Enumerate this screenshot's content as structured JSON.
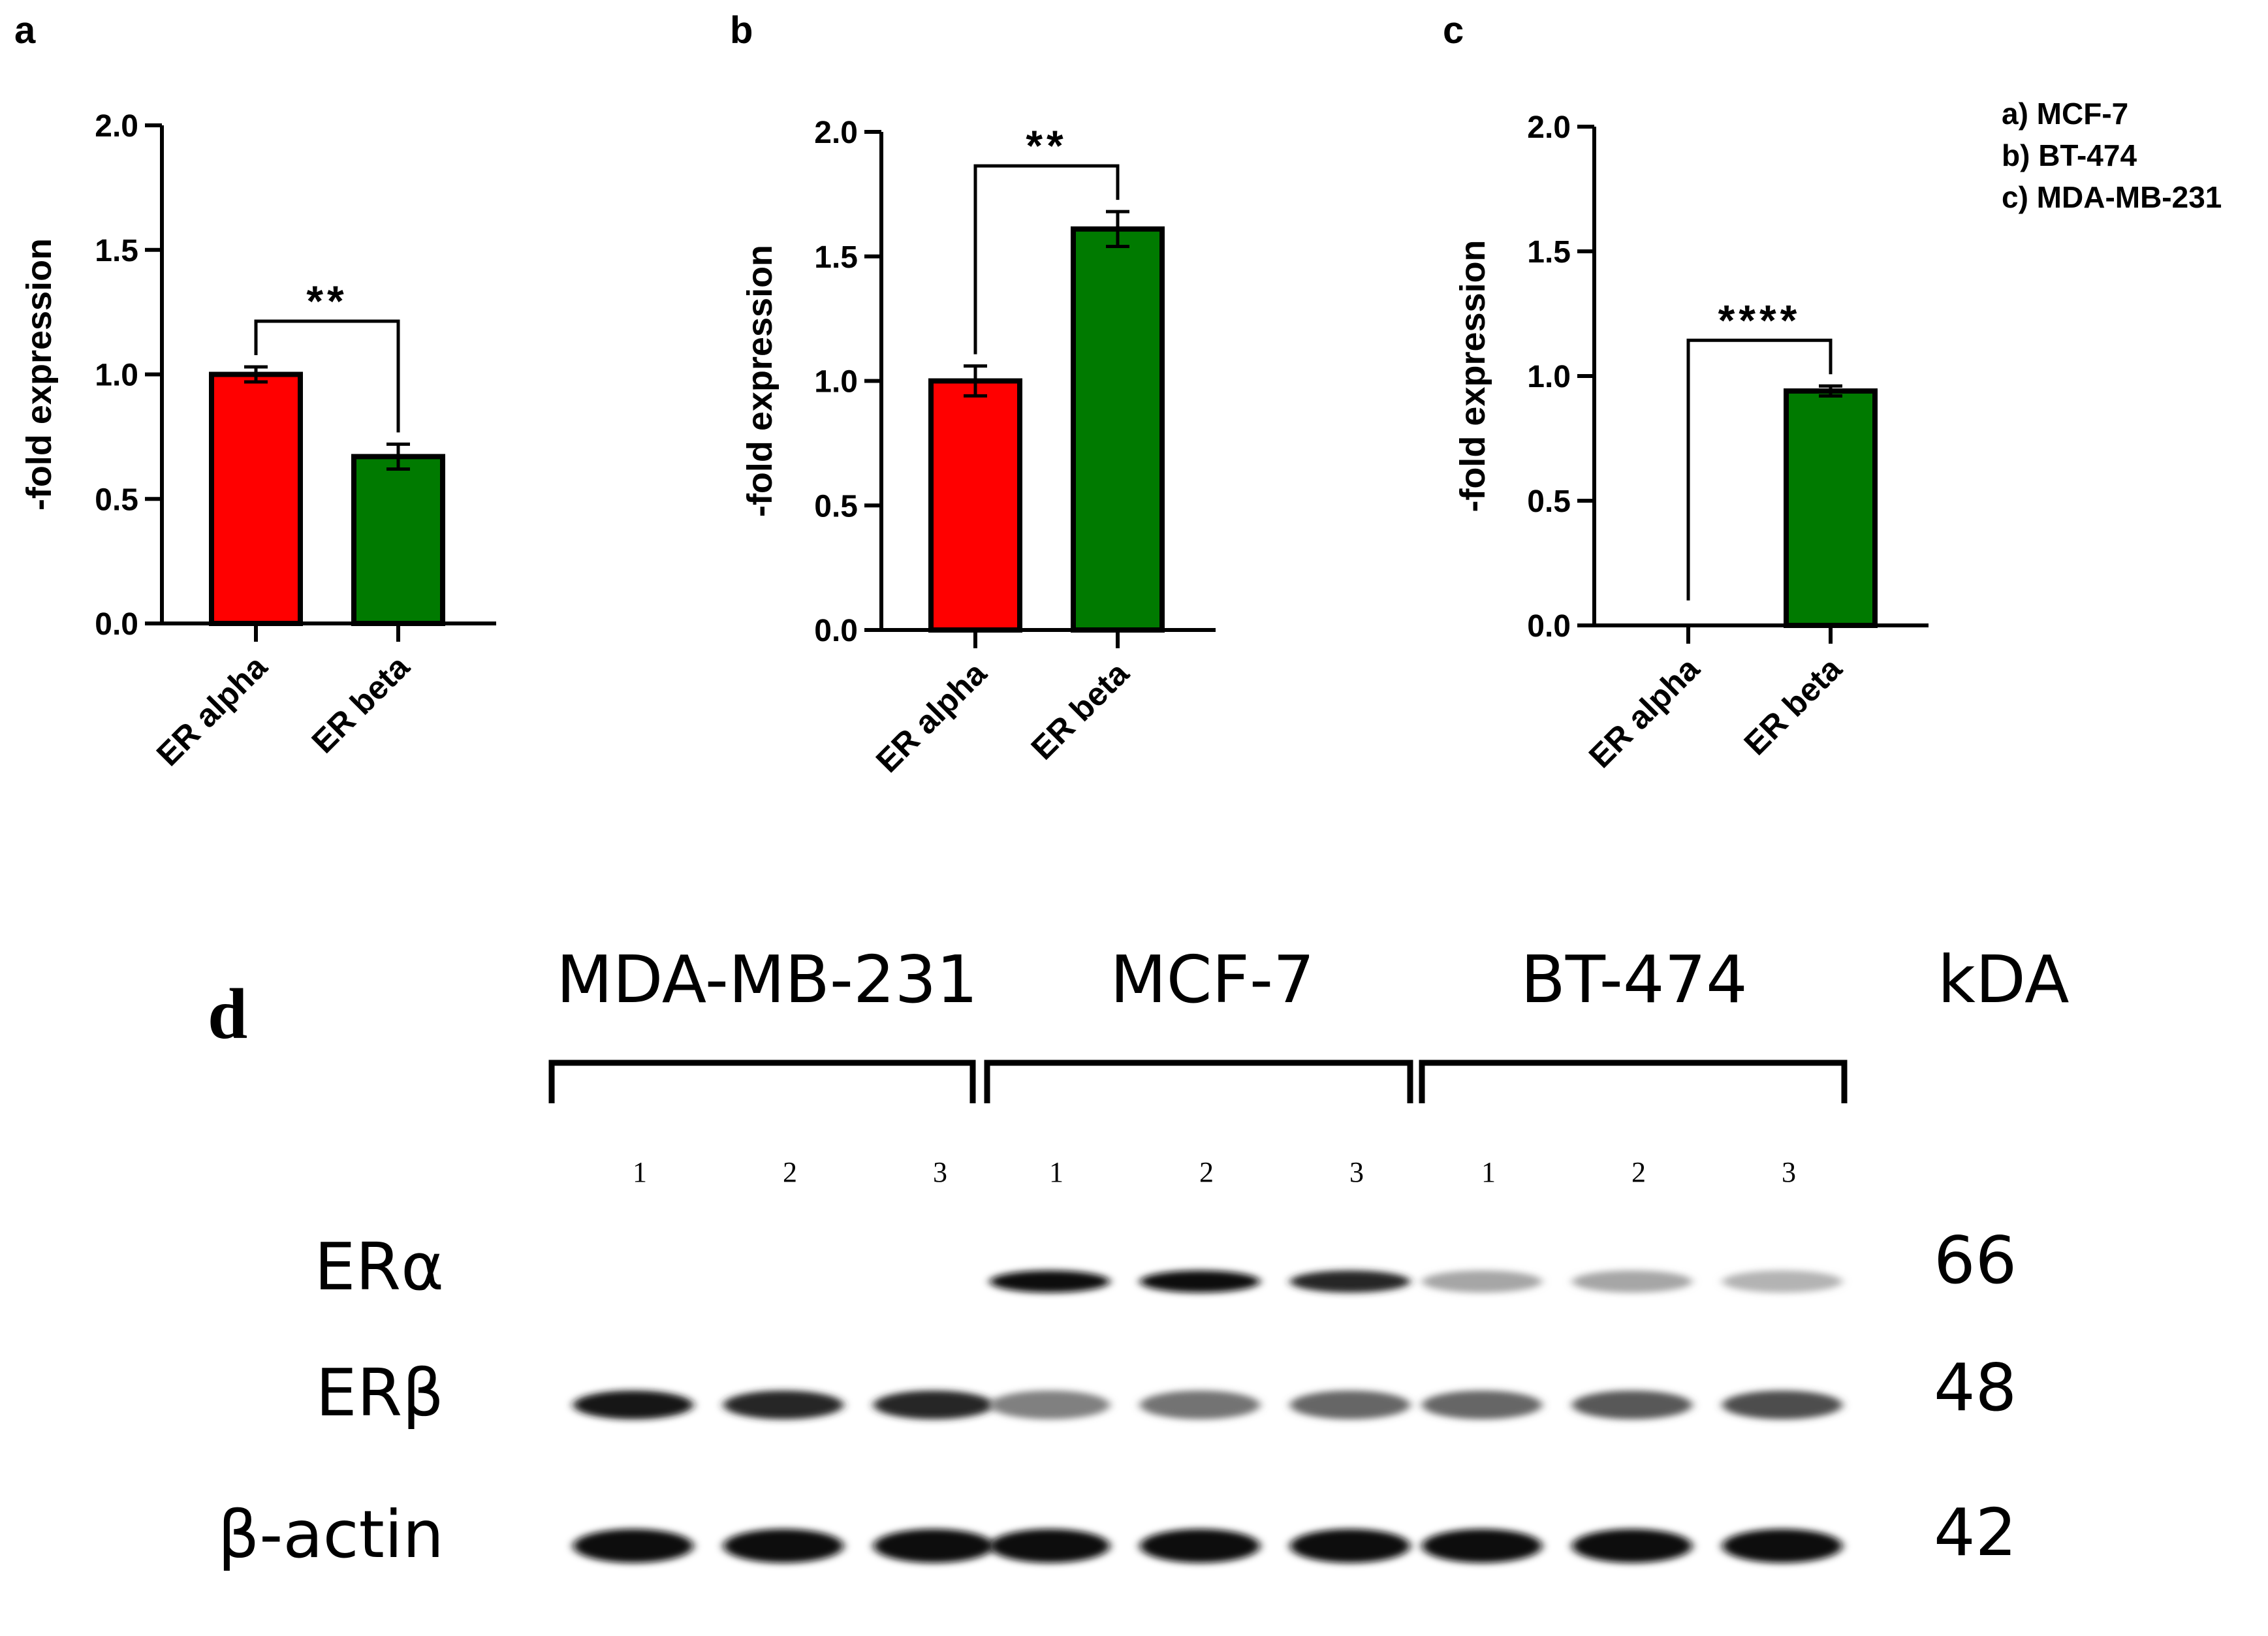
{
  "panels": {
    "a": "a",
    "b": "b",
    "c": "c",
    "d": "d"
  },
  "legend": [
    "a) MCF-7",
    "b) BT-474",
    "c) MDA-MB-231"
  ],
  "colors": {
    "er_alpha": "#ff0000",
    "er_beta": "#007a00"
  },
  "chart_data": [
    {
      "type": "bar",
      "panel": "a",
      "categories": [
        "ER alpha",
        "ER beta"
      ],
      "values": [
        1.0,
        0.67
      ],
      "errors": [
        0.03,
        0.05
      ],
      "ylabel": "-fold expression",
      "ylim": [
        0,
        2.0
      ],
      "yticks": [
        "0.0",
        "0.5",
        "1.0",
        "1.5",
        "2.0"
      ],
      "significance": "**"
    },
    {
      "type": "bar",
      "panel": "b",
      "categories": [
        "ER alpha",
        "ER beta"
      ],
      "values": [
        1.0,
        1.61
      ],
      "errors": [
        0.06,
        0.07
      ],
      "ylabel": "-fold expression",
      "ylim": [
        0,
        2.0
      ],
      "yticks": [
        "0.0",
        "0.5",
        "1.0",
        "1.5",
        "2.0"
      ],
      "significance": "**"
    },
    {
      "type": "bar",
      "panel": "c",
      "categories": [
        "ER alpha",
        "ER beta"
      ],
      "values": [
        0.0,
        0.94
      ],
      "errors": [
        0.0,
        0.02
      ],
      "ylabel": "-fold expression",
      "ylim": [
        0,
        2.0
      ],
      "yticks": [
        "0.0",
        "0.5",
        "1.0",
        "1.5",
        "2.0"
      ],
      "significance": "****"
    }
  ],
  "blot": {
    "groups": [
      "MDA-MB-231",
      "MCF-7",
      "BT-474"
    ],
    "lane_numbers": [
      "1",
      "2",
      "3",
      "1",
      "2",
      "3",
      "1",
      "2",
      "3"
    ],
    "kda_label": "kDA",
    "rows": [
      {
        "name": "ERα",
        "kda": "66",
        "intensity": [
          0,
          0,
          0,
          0.95,
          0.95,
          0.85,
          0.35,
          0.35,
          0.3
        ]
      },
      {
        "name": "ERβ",
        "kda": "48",
        "intensity": [
          0.9,
          0.85,
          0.85,
          0.5,
          0.55,
          0.6,
          0.6,
          0.65,
          0.7
        ]
      },
      {
        "name": "β-actin",
        "kda": "42",
        "intensity": [
          0.95,
          0.95,
          0.95,
          0.95,
          0.95,
          0.95,
          0.95,
          0.95,
          0.95
        ]
      }
    ]
  }
}
